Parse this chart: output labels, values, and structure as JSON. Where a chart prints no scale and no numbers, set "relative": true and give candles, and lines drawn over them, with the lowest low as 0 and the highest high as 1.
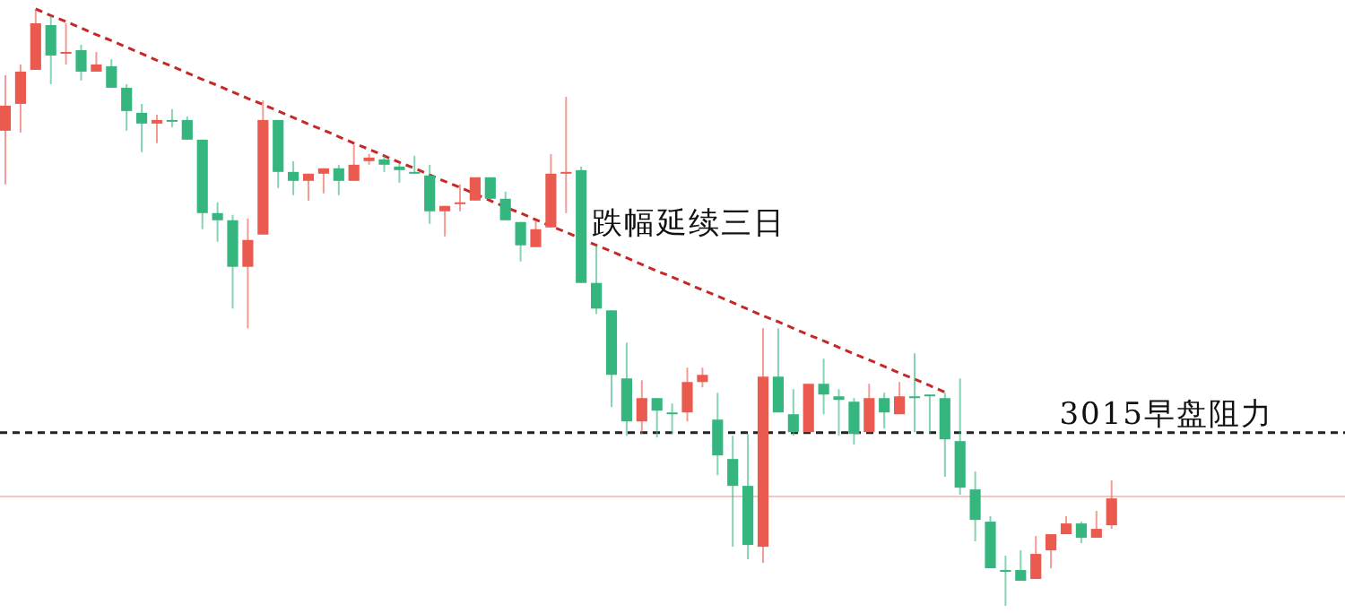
{
  "chart_data": {
    "type": "candlestick",
    "relative": true,
    "categories": [
      null,
      null,
      null,
      null,
      null,
      null,
      null,
      null,
      null,
      null,
      null,
      null,
      null,
      null,
      null,
      null,
      null,
      null,
      null,
      null,
      null,
      null,
      null,
      null,
      null,
      null,
      null,
      null,
      null,
      null,
      null,
      null,
      null,
      null,
      null,
      null,
      null,
      null,
      null,
      null,
      null,
      null,
      null,
      null,
      null,
      null,
      null,
      null,
      null,
      null,
      null,
      null,
      null,
      null,
      null,
      null,
      null,
      null,
      null,
      null,
      null,
      null,
      null,
      null,
      null,
      null,
      null,
      null,
      null,
      null,
      null,
      null,
      null,
      null
    ],
    "ohlc": [
      [
        0.796,
        0.889,
        0.706,
        0.838
      ],
      [
        0.841,
        0.907,
        0.793,
        0.895
      ],
      [
        0.898,
        1.0,
        0.898,
        0.976
      ],
      [
        0.973,
        0.988,
        0.874,
        0.922
      ],
      [
        0.925,
        0.976,
        0.907,
        0.928
      ],
      [
        0.931,
        0.94,
        0.88,
        0.895
      ],
      [
        0.895,
        0.928,
        0.895,
        0.907
      ],
      [
        0.904,
        0.916,
        0.868,
        0.868
      ],
      [
        0.868,
        0.874,
        0.796,
        0.829
      ],
      [
        0.826,
        0.841,
        0.76,
        0.808
      ],
      [
        0.808,
        0.823,
        0.775,
        0.814
      ],
      [
        0.814,
        0.832,
        0.802,
        0.811
      ],
      [
        0.814,
        0.82,
        0.781,
        0.781
      ],
      [
        0.781,
        0.781,
        0.631,
        0.658
      ],
      [
        0.658,
        0.676,
        0.61,
        0.646
      ],
      [
        0.646,
        0.655,
        0.498,
        0.568
      ],
      [
        0.568,
        0.649,
        0.465,
        0.613
      ],
      [
        0.622,
        0.847,
        0.622,
        0.814
      ],
      [
        0.814,
        0.814,
        0.7,
        0.727
      ],
      [
        0.727,
        0.745,
        0.688,
        0.712
      ],
      [
        0.712,
        0.724,
        0.679,
        0.724
      ],
      [
        0.724,
        0.733,
        0.691,
        0.733
      ],
      [
        0.733,
        0.739,
        0.688,
        0.712
      ],
      [
        0.712,
        0.772,
        0.712,
        0.739
      ],
      [
        0.745,
        0.757,
        0.739,
        0.751
      ],
      [
        0.748,
        0.754,
        0.727,
        0.739
      ],
      [
        0.736,
        0.742,
        0.709,
        0.73
      ],
      [
        0.727,
        0.754,
        0.724,
        0.724
      ],
      [
        0.721,
        0.739,
        0.64,
        0.661
      ],
      [
        0.661,
        0.67,
        0.619,
        0.67
      ],
      [
        0.673,
        0.706,
        0.661,
        0.676
      ],
      [
        0.679,
        0.718,
        0.679,
        0.718
      ],
      [
        0.718,
        0.718,
        0.682,
        0.682
      ],
      [
        0.682,
        0.694,
        0.646,
        0.646
      ],
      [
        0.643,
        0.643,
        0.577,
        0.604
      ],
      [
        0.601,
        0.646,
        0.601,
        0.631
      ],
      [
        0.634,
        0.757,
        0.634,
        0.724
      ],
      [
        0.724,
        0.853,
        0.658,
        0.727
      ],
      [
        0.73,
        0.736,
        0.541,
        0.541
      ],
      [
        0.541,
        0.604,
        0.489,
        0.498
      ],
      [
        0.495,
        0.495,
        0.333,
        0.387
      ],
      [
        0.381,
        0.441,
        0.285,
        0.309
      ],
      [
        0.309,
        0.378,
        0.288,
        0.348
      ],
      [
        0.348,
        0.348,
        0.282,
        0.327
      ],
      [
        0.324,
        0.339,
        0.288,
        0.321
      ],
      [
        0.324,
        0.399,
        0.309,
        0.375
      ],
      [
        0.375,
        0.399,
        0.366,
        0.387
      ],
      [
        0.312,
        0.357,
        0.219,
        0.252
      ],
      [
        0.246,
        0.285,
        0.099,
        0.201
      ],
      [
        0.201,
        0.288,
        0.078,
        0.102
      ],
      [
        0.099,
        0.465,
        0.072,
        0.384
      ],
      [
        0.384,
        0.465,
        0.324,
        0.324
      ],
      [
        0.321,
        0.363,
        0.285,
        0.291
      ],
      [
        0.291,
        0.372,
        0.291,
        0.372
      ],
      [
        0.372,
        0.414,
        0.321,
        0.354
      ],
      [
        0.351,
        0.363,
        0.285,
        0.345
      ],
      [
        0.342,
        0.348,
        0.27,
        0.288
      ],
      [
        0.291,
        0.372,
        0.291,
        0.348
      ],
      [
        0.348,
        0.357,
        0.297,
        0.324
      ],
      [
        0.321,
        0.375,
        0.321,
        0.351
      ],
      [
        0.351,
        0.423,
        0.291,
        0.348
      ],
      [
        0.354,
        0.354,
        0.288,
        0.351
      ],
      [
        0.348,
        0.357,
        0.216,
        0.279
      ],
      [
        0.276,
        0.381,
        0.186,
        0.198
      ],
      [
        0.195,
        0.225,
        0.108,
        0.144
      ],
      [
        0.141,
        0.15,
        0.063,
        0.063
      ],
      [
        0.06,
        0.084,
        0.0,
        0.057
      ],
      [
        0.06,
        0.093,
        0.042,
        0.042
      ],
      [
        0.045,
        0.117,
        0.045,
        0.087
      ],
      [
        0.093,
        0.12,
        0.063,
        0.12
      ],
      [
        0.12,
        0.15,
        0.12,
        0.138
      ],
      [
        0.138,
        0.141,
        0.105,
        0.114
      ],
      [
        0.114,
        0.159,
        0.114,
        0.129
      ],
      [
        0.135,
        0.21,
        0.129,
        0.18
      ]
    ],
    "colors": [
      "#eb5a4e",
      "#eb5a4e",
      "#eb5a4e",
      "#35b67f",
      "#eb5a4e",
      "#35b67f",
      "#eb5a4e",
      "#35b67f",
      "#35b67f",
      "#35b67f",
      "#eb5a4e",
      "#35b67f",
      "#35b67f",
      "#35b67f",
      "#35b67f",
      "#35b67f",
      "#eb5a4e",
      "#eb5a4e",
      "#35b67f",
      "#35b67f",
      "#eb5a4e",
      "#eb5a4e",
      "#35b67f",
      "#eb5a4e",
      "#eb5a4e",
      "#35b67f",
      "#35b67f",
      "#35b67f",
      "#35b67f",
      "#eb5a4e",
      "#eb5a4e",
      "#eb5a4e",
      "#35b67f",
      "#35b67f",
      "#35b67f",
      "#eb5a4e",
      "#eb5a4e",
      "#eb5a4e",
      "#35b67f",
      "#35b67f",
      "#35b67f",
      "#35b67f",
      "#eb5a4e",
      "#35b67f",
      "#35b67f",
      "#eb5a4e",
      "#eb5a4e",
      "#35b67f",
      "#35b67f",
      "#35b67f",
      "#eb5a4e",
      "#35b67f",
      "#35b67f",
      "#eb5a4e",
      "#35b67f",
      "#35b67f",
      "#35b67f",
      "#eb5a4e",
      "#35b67f",
      "#eb5a4e",
      "#35b67f",
      "#35b67f",
      "#35b67f",
      "#35b67f",
      "#35b67f",
      "#35b67f",
      "#35b67f",
      "#35b67f",
      "#eb5a4e",
      "#eb5a4e",
      "#eb5a4e",
      "#35b67f",
      "#eb5a4e",
      "#eb5a4e"
    ],
    "series": [
      {
        "type": "line",
        "color": "#c62828",
        "line_style": "dashed",
        "values": [
          null,
          null,
          1.0,
          0.989,
          0.979,
          0.968,
          0.957,
          0.947,
          0.936,
          0.925,
          0.914,
          0.904,
          0.893,
          0.882,
          0.872,
          0.861,
          0.85,
          0.84,
          0.829,
          0.818,
          0.807,
          0.797,
          0.786,
          0.775,
          0.765,
          0.754,
          0.743,
          0.733,
          0.722,
          0.711,
          0.701,
          0.69,
          0.679,
          0.668,
          0.658,
          0.647,
          0.636,
          0.626,
          0.615,
          0.604,
          0.594,
          0.583,
          0.572,
          0.561,
          0.551,
          0.54,
          0.529,
          0.519,
          0.508,
          0.497,
          0.486,
          0.476,
          0.465,
          0.454,
          0.444,
          0.433,
          0.422,
          0.412,
          0.401,
          0.39,
          0.38,
          0.369,
          0.358,
          null,
          null,
          null,
          null,
          null,
          null,
          null,
          null,
          null,
          null,
          null
        ]
      }
    ],
    "ref_lines": [
      {
        "axis": "y",
        "value": 0.183,
        "color": "#f6c6c2"
      },
      {
        "axis": "y",
        "value": 0.29,
        "color": "#222222",
        "line_style": "dashed",
        "label": "3015早盘阻力"
      }
    ],
    "annotations": [
      "跌幅延续三日"
    ]
  }
}
